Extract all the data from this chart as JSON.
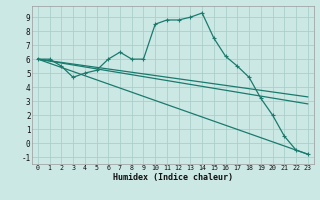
{
  "background_color": "#cce8e4",
  "grid_color": "#aad0cc",
  "line_color": "#1a7a6e",
  "xlabel": "Humidex (Indice chaleur)",
  "xlim": [
    -0.5,
    23.5
  ],
  "ylim": [
    -1.5,
    9.8
  ],
  "xticks": [
    0,
    1,
    2,
    3,
    4,
    5,
    6,
    7,
    8,
    9,
    10,
    11,
    12,
    13,
    14,
    15,
    16,
    17,
    18,
    19,
    20,
    21,
    22,
    23
  ],
  "yticks": [
    -1,
    0,
    1,
    2,
    3,
    4,
    5,
    6,
    7,
    8,
    9
  ],
  "curve_x": [
    0,
    1,
    2,
    3,
    4,
    5,
    6,
    7,
    8,
    9,
    10,
    11,
    12,
    13,
    14,
    15,
    16,
    17,
    18,
    19,
    20,
    21,
    22,
    23
  ],
  "curve_y": [
    6.0,
    6.0,
    5.5,
    4.7,
    5.0,
    5.2,
    6.0,
    6.5,
    6.0,
    6.0,
    8.5,
    8.8,
    8.8,
    9.0,
    9.3,
    7.5,
    6.2,
    5.5,
    4.7,
    3.2,
    2.0,
    0.5,
    -0.5,
    -0.8
  ],
  "straight_lines": [
    {
      "x": [
        0,
        23
      ],
      "y": [
        6.0,
        3.3
      ]
    },
    {
      "x": [
        0,
        23
      ],
      "y": [
        6.0,
        2.8
      ]
    },
    {
      "x": [
        0,
        23
      ],
      "y": [
        6.0,
        -0.8
      ]
    }
  ]
}
